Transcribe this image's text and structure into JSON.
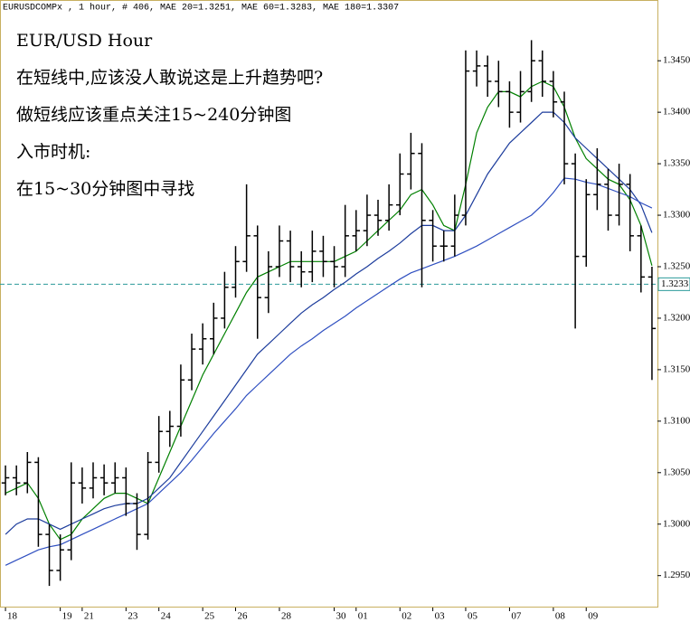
{
  "chart_data": {
    "type": "ohlc",
    "header": "EURUSDCOMPx , 1 hour, # 406, MAE 20=1.3251, MAE 60=1.3283, MAE 180=1.3307",
    "annotations": [
      {
        "text": "EUR/USD    Hour",
        "color": "#1a5fa8"
      },
      {
        "text": "在短线中,应该没人敢说这是上升趋势吧?",
        "color": "#1a5fa8"
      },
      {
        "text": "做短线应该重点关注15~240分钟图",
        "color": "#1a5fa8"
      },
      {
        "text": "入市时机:",
        "color": "#e00000"
      },
      {
        "text": "在15~30分钟图中寻找",
        "color": "#e00000"
      }
    ],
    "categories": [
      "18",
      null,
      null,
      null,
      null,
      "19",
      null,
      "21",
      null,
      null,
      null,
      "23",
      null,
      null,
      "24",
      null,
      null,
      null,
      "25",
      null,
      null,
      "26",
      null,
      null,
      null,
      "28",
      null,
      null,
      null,
      null,
      "30",
      null,
      "01",
      null,
      null,
      null,
      "02",
      null,
      null,
      "03",
      null,
      null,
      "05",
      null,
      null,
      null,
      "07",
      null,
      null,
      null,
      "08",
      null,
      null,
      "09",
      null,
      null,
      null,
      null,
      null,
      null
    ],
    "open": [
      1.304,
      1.3045,
      1.304,
      1.306,
      1.299,
      1.2955,
      1.2975,
      1.304,
      1.3035,
      1.3045,
      1.304,
      1.3045,
      1.302,
      1.299,
      1.306,
      1.309,
      1.3095,
      1.314,
      1.317,
      1.318,
      1.32,
      1.323,
      1.3255,
      1.328,
      1.322,
      1.325,
      1.3275,
      1.325,
      1.3245,
      1.3265,
      1.3255,
      1.325,
      1.328,
      1.3285,
      1.33,
      1.3295,
      1.331,
      1.334,
      1.336,
      1.3295,
      1.327,
      1.327,
      1.33,
      1.344,
      1.3445,
      1.343,
      1.342,
      1.34,
      1.342,
      1.345,
      1.343,
      1.341,
      1.335,
      1.326,
      1.332,
      1.333,
      1.33,
      1.333,
      1.328,
      1.324
    ],
    "high": [
      1.3057,
      1.3057,
      1.307,
      1.3065,
      1.3,
      1.299,
      1.306,
      1.3055,
      1.306,
      1.3058,
      1.306,
      1.3055,
      1.303,
      1.307,
      1.3105,
      1.311,
      1.3155,
      1.3185,
      1.3195,
      1.3215,
      1.3245,
      1.327,
      1.333,
      1.329,
      1.3265,
      1.329,
      1.3285,
      1.3265,
      1.3285,
      1.328,
      1.327,
      1.331,
      1.3305,
      1.332,
      1.3315,
      1.333,
      1.336,
      1.338,
      1.337,
      1.3305,
      1.3285,
      1.332,
      1.346,
      1.346,
      1.3455,
      1.345,
      1.343,
      1.344,
      1.347,
      1.346,
      1.344,
      1.342,
      1.336,
      1.3335,
      1.3365,
      1.3345,
      1.335,
      1.334,
      1.329,
      1.325
    ],
    "low": [
      1.3028,
      1.3028,
      1.303,
      1.2978,
      1.294,
      1.2945,
      1.2965,
      1.302,
      1.3025,
      1.3028,
      1.303,
      1.3008,
      1.2975,
      1.2985,
      1.305,
      1.3075,
      1.3085,
      1.313,
      1.3155,
      1.3165,
      1.319,
      1.322,
      1.3245,
      1.318,
      1.3205,
      1.324,
      1.3235,
      1.323,
      1.3235,
      1.324,
      1.323,
      1.324,
      1.3265,
      1.327,
      1.328,
      1.3285,
      1.33,
      1.3325,
      1.323,
      1.3255,
      1.3255,
      1.326,
      1.329,
      1.3425,
      1.3415,
      1.3405,
      1.3385,
      1.339,
      1.341,
      1.3415,
      1.3395,
      1.333,
      1.319,
      1.325,
      1.3305,
      1.3285,
      1.329,
      1.3265,
      1.3225,
      1.314
    ],
    "close": [
      1.3045,
      1.304,
      1.306,
      1.299,
      1.2955,
      1.2975,
      1.304,
      1.3035,
      1.3045,
      1.304,
      1.3045,
      1.302,
      1.299,
      1.306,
      1.309,
      1.3095,
      1.314,
      1.317,
      1.318,
      1.32,
      1.323,
      1.3255,
      1.328,
      1.322,
      1.325,
      1.3275,
      1.325,
      1.3245,
      1.3265,
      1.3255,
      1.325,
      1.328,
      1.3285,
      1.33,
      1.3295,
      1.331,
      1.334,
      1.336,
      1.3295,
      1.327,
      1.327,
      1.33,
      1.344,
      1.3445,
      1.343,
      1.342,
      1.34,
      1.342,
      1.345,
      1.343,
      1.341,
      1.335,
      1.326,
      1.332,
      1.333,
      1.33,
      1.333,
      1.328,
      1.324,
      1.319
    ],
    "bar_color": "#000000",
    "series": [
      {
        "color": "#008000",
        "values": [
          1.303,
          1.3035,
          1.304,
          1.3025,
          1.3,
          1.2985,
          1.299,
          1.3005,
          1.3015,
          1.3025,
          1.303,
          1.303,
          1.3025,
          1.302,
          1.3045,
          1.307,
          1.3095,
          1.312,
          1.3145,
          1.3165,
          1.3185,
          1.3205,
          1.3225,
          1.324,
          1.3245,
          1.325,
          1.3255,
          1.3255,
          1.3255,
          1.3255,
          1.3255,
          1.326,
          1.3265,
          1.3275,
          1.3285,
          1.3295,
          1.3305,
          1.332,
          1.3325,
          1.331,
          1.329,
          1.3285,
          1.333,
          1.338,
          1.3405,
          1.342,
          1.342,
          1.3415,
          1.3425,
          1.343,
          1.3425,
          1.3405,
          1.3375,
          1.3355,
          1.3345,
          1.3335,
          1.333,
          1.3315,
          1.329,
          1.3251
        ]
      },
      {
        "color": "#1c3c9c",
        "values": [
          1.299,
          1.3,
          1.3005,
          1.3005,
          1.3,
          1.2995,
          1.3,
          1.3005,
          1.301,
          1.3015,
          1.3018,
          1.302,
          1.302,
          1.3025,
          1.3035,
          1.3045,
          1.306,
          1.3075,
          1.309,
          1.3105,
          1.312,
          1.3135,
          1.315,
          1.3165,
          1.3175,
          1.3185,
          1.3195,
          1.3205,
          1.3213,
          1.322,
          1.3228,
          1.3235,
          1.3243,
          1.325,
          1.3258,
          1.3265,
          1.3273,
          1.3282,
          1.329,
          1.329,
          1.3285,
          1.3285,
          1.33,
          1.332,
          1.334,
          1.3355,
          1.337,
          1.338,
          1.339,
          1.34,
          1.34,
          1.339,
          1.3375,
          1.3365,
          1.3355,
          1.3345,
          1.3335,
          1.3325,
          1.331,
          1.3283
        ]
      },
      {
        "color": "#2f4fc0",
        "values": [
          1.296,
          1.2965,
          1.297,
          1.2975,
          1.2978,
          1.298,
          1.2985,
          1.299,
          1.2995,
          1.3,
          1.3005,
          1.301,
          1.3015,
          1.302,
          1.303,
          1.304,
          1.305,
          1.3062,
          1.3075,
          1.3088,
          1.31,
          1.3112,
          1.3125,
          1.3135,
          1.3145,
          1.3155,
          1.3165,
          1.3173,
          1.318,
          1.3188,
          1.3195,
          1.3202,
          1.321,
          1.3217,
          1.3224,
          1.3231,
          1.3238,
          1.3244,
          1.3248,
          1.3252,
          1.3256,
          1.326,
          1.3265,
          1.327,
          1.3276,
          1.3282,
          1.3288,
          1.3294,
          1.33,
          1.331,
          1.3322,
          1.3336,
          1.3335,
          1.3332,
          1.333,
          1.3326,
          1.3322,
          1.3318,
          1.3312,
          1.3307
        ]
      }
    ],
    "hline": {
      "value": 1.3233,
      "color": "#2a9a9a"
    },
    "ylim": [
      1.2919,
      1.3509
    ],
    "yticks": [
      {
        "value": 1.295,
        "label": "1.2950"
      },
      {
        "value": 1.3,
        "label": "1.3000"
      },
      {
        "value": 1.305,
        "label": "1.3050"
      },
      {
        "value": 1.31,
        "label": "1.3100"
      },
      {
        "value": 1.315,
        "label": "1.3150"
      },
      {
        "value": 1.32,
        "label": "1.3200"
      },
      {
        "value": 1.325,
        "label": "1.3250"
      },
      {
        "value": 1.33,
        "label": "1.3300"
      },
      {
        "value": 1.335,
        "label": "1.3350"
      },
      {
        "value": 1.34,
        "label": "1.3400"
      },
      {
        "value": 1.345,
        "label": "1.3450"
      }
    ]
  }
}
